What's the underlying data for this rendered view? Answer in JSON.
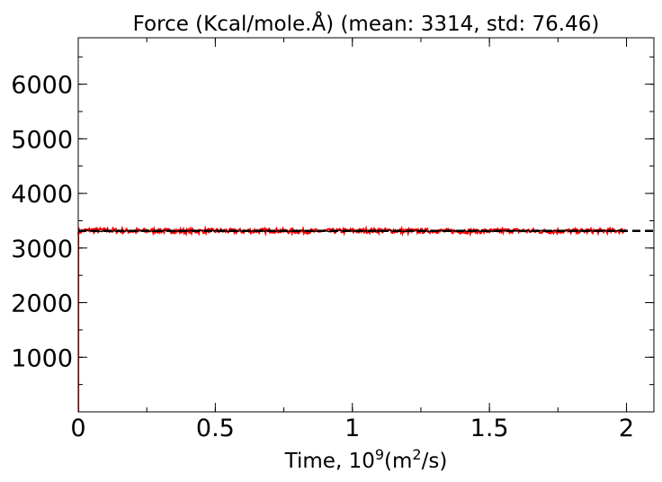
{
  "chart_data": {
    "type": "line",
    "title": "Force (Kcal/mole.Å) (mean: 3314, std: 76.46)",
    "xlabel": {
      "prefix": "Time, 10",
      "exp": "9",
      "mid": "(m",
      "exp2": "2",
      "suffix": "/s)"
    },
    "ylabel": "",
    "xlim": [
      0,
      2.1
    ],
    "ylim": [
      0,
      6850
    ],
    "x_ticks": [
      {
        "value": 0,
        "label": "0"
      },
      {
        "value": 0.5,
        "label": "0.5"
      },
      {
        "value": 1,
        "label": "1"
      },
      {
        "value": 1.5,
        "label": "1.5"
      },
      {
        "value": 2,
        "label": "2"
      }
    ],
    "y_ticks": [
      {
        "value": 1000,
        "label": "1000"
      },
      {
        "value": 2000,
        "label": "2000"
      },
      {
        "value": 3000,
        "label": "3000"
      },
      {
        "value": 4000,
        "label": "4000"
      },
      {
        "value": 5000,
        "label": "5000"
      },
      {
        "value": 6000,
        "label": "6000"
      }
    ],
    "x_minor_step": 0.25,
    "y_minor_step": 500,
    "grid": false,
    "series": [
      {
        "color": "#ff0000",
        "style": "noisy line",
        "x": [
          0,
          0.02,
          0.05,
          0.1,
          0.2,
          0.3,
          0.4,
          0.5,
          0.6,
          0.7,
          0.8,
          0.9,
          1.0,
          1.1,
          1.2,
          1.3,
          1.4,
          1.5,
          1.6,
          1.7,
          1.8,
          1.9,
          2.0
        ],
        "y": [
          3290,
          3320,
          3330,
          3325,
          3310,
          3320,
          3305,
          3315,
          3310,
          3320,
          3305,
          3310,
          3315,
          3320,
          3310,
          3315,
          3305,
          3310,
          3320,
          3305,
          3310,
          3315,
          3320
        ],
        "noise": 40
      },
      {
        "color": "#000000",
        "style": "noisy line",
        "x": [
          0,
          0.5,
          1.0,
          1.5,
          2.0
        ],
        "y": [
          3310,
          3314,
          3312,
          3313,
          3315
        ],
        "noise": 15
      }
    ],
    "reference_lines": [
      {
        "y": 3314,
        "color": "#000000",
        "dashed": true
      }
    ]
  }
}
